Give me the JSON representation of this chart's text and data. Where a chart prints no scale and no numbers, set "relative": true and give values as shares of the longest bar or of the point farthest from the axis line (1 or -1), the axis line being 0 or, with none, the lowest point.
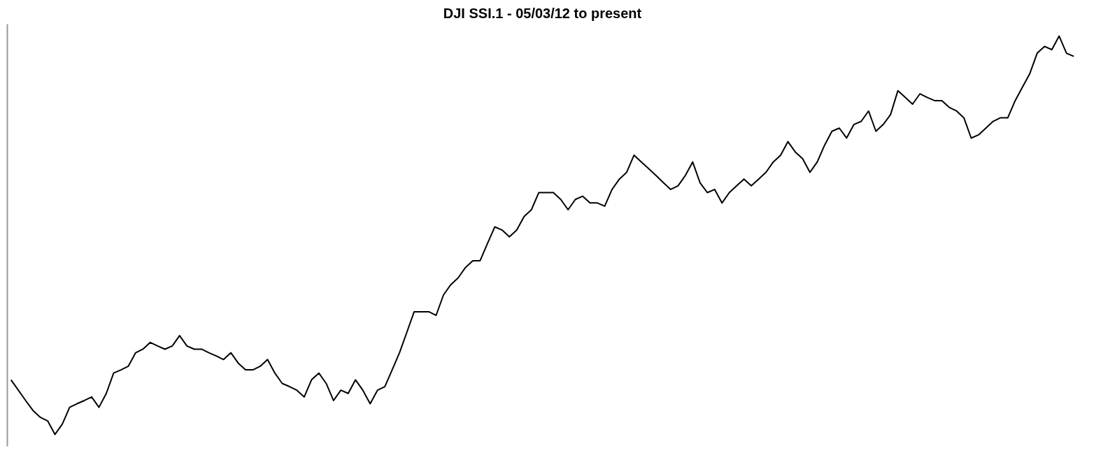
{
  "chart_data": {
    "type": "line",
    "title": "DJI SSI.1 - 05/03/12 to present",
    "relative": true,
    "tick_labels": false,
    "categories": [
      null,
      null,
      null,
      null,
      null,
      null,
      null,
      null,
      null,
      null,
      null,
      null,
      null,
      null,
      null,
      null,
      null,
      null,
      null,
      null,
      null,
      null,
      null,
      null,
      null,
      null,
      null,
      null,
      null,
      null,
      null,
      null,
      null,
      null,
      null,
      null,
      null,
      null,
      null,
      null,
      null,
      null,
      null,
      null,
      null,
      null,
      null,
      null,
      null,
      null,
      null,
      null,
      null,
      null,
      null,
      null,
      null,
      null,
      null,
      null,
      null,
      null,
      null,
      null,
      null,
      null,
      null,
      null,
      null,
      null,
      null,
      null,
      null,
      null,
      null,
      null,
      null,
      null,
      null,
      null,
      null,
      null,
      null,
      null,
      null,
      null,
      null,
      null,
      null,
      null,
      null,
      null,
      null,
      null,
      null,
      null,
      null,
      null,
      null,
      null,
      null,
      null,
      null,
      null,
      null,
      null,
      null,
      null,
      null,
      null,
      null,
      null,
      null,
      null,
      null,
      null,
      null,
      null,
      null,
      null,
      null,
      null,
      null,
      null,
      null,
      null,
      null,
      null,
      null,
      null,
      null,
      null,
      null,
      null,
      null,
      null,
      null,
      null,
      null,
      null,
      null,
      null,
      null,
      null,
      null,
      null
    ],
    "series": [
      {
        "color": "#000000",
        "values": [
          0.137,
          0.111,
          0.085,
          0.06,
          0.043,
          0.034,
          0,
          0.026,
          0.068,
          0.077,
          0.085,
          0.094,
          0.068,
          0.103,
          0.154,
          0.162,
          0.171,
          0.205,
          0.214,
          0.231,
          0.222,
          0.214,
          0.222,
          0.248,
          0.222,
          0.214,
          0.214,
          0.205,
          0.197,
          0.188,
          0.205,
          0.179,
          0.162,
          0.162,
          0.171,
          0.188,
          0.154,
          0.128,
          0.12,
          0.111,
          0.094,
          0.137,
          0.154,
          0.128,
          0.085,
          0.111,
          0.103,
          0.137,
          0.111,
          0.077,
          0.111,
          0.12,
          0.162,
          0.205,
          0.256,
          0.308,
          0.308,
          0.308,
          0.299,
          0.35,
          0.376,
          0.393,
          0.419,
          0.436,
          0.436,
          0.479,
          0.521,
          0.513,
          0.496,
          0.513,
          0.547,
          0.564,
          0.607,
          0.607,
          0.607,
          0.59,
          0.564,
          0.59,
          0.598,
          0.581,
          0.581,
          0.573,
          0.615,
          0.641,
          0.658,
          0.701,
          0.684,
          0.667,
          0.65,
          0.632,
          0.615,
          0.624,
          0.65,
          0.684,
          0.632,
          0.607,
          0.615,
          0.581,
          0.607,
          0.624,
          0.641,
          0.624,
          0.641,
          0.658,
          0.684,
          0.701,
          0.735,
          0.709,
          0.692,
          0.658,
          0.684,
          0.726,
          0.761,
          0.769,
          0.744,
          0.778,
          0.786,
          0.812,
          0.761,
          0.778,
          0.803,
          0.863,
          0.846,
          0.829,
          0.855,
          0.846,
          0.838,
          0.838,
          0.821,
          0.812,
          0.795,
          0.744,
          0.752,
          0.769,
          0.786,
          0.795,
          0.795,
          0.838,
          0.872,
          0.906,
          0.957,
          0.974,
          0.966,
          1,
          0.957,
          0.949
        ]
      }
    ]
  }
}
